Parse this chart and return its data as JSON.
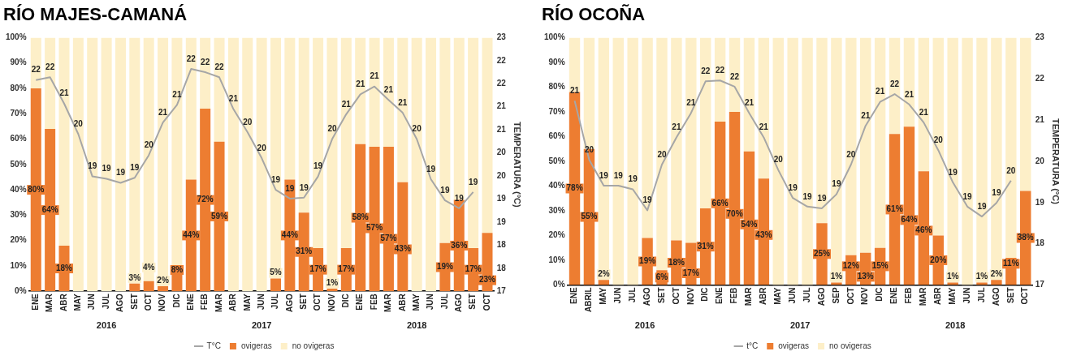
{
  "chart_data": [
    {
      "type": "bar",
      "title": "RÍO MAJES-CAMANÁ",
      "y2label": "TEMPERATURA (°C)",
      "stacked": true,
      "grid": false,
      "legend": "bottom",
      "marker": "none",
      "line_style": "solid",
      "categories": [
        "ENE",
        "MAR",
        "ABR",
        "MAY",
        "JUN",
        "JUL",
        "AGO",
        "SET",
        "OCT",
        "NOV",
        "DIC",
        "ENE",
        "FEB",
        "MAR",
        "ABR",
        "MAY",
        "JUN",
        "JUL",
        "AGO",
        "SET",
        "OCT",
        "NOV",
        "DIC",
        "ENE",
        "FEB",
        "MAR",
        "ABR",
        "MAY",
        "JUN",
        "JUL",
        "AGO",
        "SET",
        "OCT"
      ],
      "ylim": [
        0,
        100
      ],
      "yticks": [
        {
          "value": 0,
          "label": "0%"
        },
        {
          "value": 10,
          "label": "10%"
        },
        {
          "value": 20,
          "label": "20%"
        },
        {
          "value": 30,
          "label": "30%"
        },
        {
          "value": 40,
          "label": "40%"
        },
        {
          "value": 50,
          "label": "50%"
        },
        {
          "value": 60,
          "label": "60%"
        },
        {
          "value": 70,
          "label": "70%"
        },
        {
          "value": 80,
          "label": "80%"
        },
        {
          "value": 90,
          "label": "90%"
        },
        {
          "value": 100,
          "label": "100%"
        }
      ],
      "y2lim": [
        17,
        22.5
      ],
      "y2ticks": [
        17,
        {
          "value": 17.5,
          "label": "18"
        },
        18,
        {
          "value": 18.5,
          "label": "19"
        },
        19,
        {
          "value": 19.5,
          "label": "20"
        },
        20,
        {
          "value": 20.5,
          "label": "21"
        },
        21,
        {
          "value": 21.5,
          "label": "22"
        },
        22,
        {
          "value": 22.5,
          "label": "23"
        }
      ],
      "series": [
        {
          "name": "ovigeras",
          "color": "#ed7d31",
          "values": [
            80,
            64,
            18,
            0,
            0,
            0,
            0,
            3,
            4,
            2,
            8,
            44,
            72,
            59,
            0,
            0,
            0,
            5,
            44,
            31,
            17,
            1,
            17,
            58,
            57,
            57,
            43,
            0,
            0,
            19,
            36,
            17,
            23
          ],
          "value_labels": [
            "80%",
            "64%",
            "18%",
            null,
            null,
            null,
            null,
            "3%",
            "4%",
            "2%",
            "8%",
            "44%",
            "72%",
            "59%",
            null,
            null,
            null,
            "5%",
            "44%",
            "31%",
            "17%",
            "1%",
            "17%",
            "58%",
            "57%",
            "57%",
            "43%",
            null,
            null,
            "19%",
            "36%",
            "17%",
            "23%"
          ]
        },
        {
          "name": "no ovigeras",
          "color": "#fdefc8",
          "values": [
            20,
            36,
            82,
            100,
            100,
            100,
            100,
            97,
            96,
            98,
            92,
            56,
            28,
            41,
            100,
            100,
            100,
            95,
            56,
            69,
            83,
            99,
            83,
            42,
            43,
            43,
            57,
            100,
            100,
            81,
            64,
            83,
            77
          ]
        },
        {
          "name": "T°C",
          "type": "line",
          "axis": "y2",
          "color": "#a6a6a6",
          "values": [
            21.58,
            21.64,
            21.07,
            20.41,
            19.49,
            19.44,
            19.35,
            19.46,
            19.95,
            20.66,
            21.04,
            21.82,
            21.75,
            21.64,
            20.95,
            20.45,
            19.89,
            19.2,
            19.01,
            19.03,
            19.49,
            20.3,
            20.84,
            21.27,
            21.44,
            21.15,
            20.87,
            20.3,
            19.43,
            18.97,
            18.8,
            19.15,
            null
          ],
          "value_labels": [
            "22",
            "22",
            "21",
            "20",
            "19",
            "19",
            "19",
            "19",
            "20",
            "21",
            "21",
            "22",
            "22",
            "22",
            "21",
            "20",
            "20",
            "19",
            "19",
            "19",
            "19",
            "20",
            "21",
            "21",
            "21",
            "21",
            "21",
            "20",
            "19",
            "19",
            "19",
            "19",
            null
          ]
        }
      ],
      "annotations": [
        "2016",
        "2017",
        "2018"
      ]
    },
    {
      "type": "bar",
      "title": "RÍO OCOÑA",
      "y2label": "TEMPERATURA (°C)",
      "stacked": true,
      "grid": false,
      "legend": "bottom",
      "marker": "none",
      "line_style": "solid",
      "categories": [
        "ENE",
        "ABRIL",
        "MAY",
        "JUN",
        "JUL",
        "AGO",
        "SET",
        "OCT",
        "NOV",
        "DIC",
        "ENE",
        "FEB",
        "MAR",
        "ABR",
        "MAY",
        "JUN",
        "JUL",
        "AGO",
        "SEP",
        "OCT",
        "NOV",
        "DIC",
        "ENE",
        "FEB",
        "MAR",
        "ABR",
        "MAY",
        "JUN",
        "JUL",
        "AGO",
        "SET",
        "OCT"
      ],
      "ylim": [
        0,
        100
      ],
      "yticks": [
        {
          "value": 0,
          "label": "0%"
        },
        {
          "value": 10,
          "label": "10%"
        },
        {
          "value": 20,
          "label": "20%"
        },
        {
          "value": 30,
          "label": "30%"
        },
        {
          "value": 40,
          "label": "40%"
        },
        {
          "value": 50,
          "label": "50%"
        },
        {
          "value": 60,
          "label": "60%"
        },
        {
          "value": 70,
          "label": "70%"
        },
        {
          "value": 80,
          "label": "80%"
        },
        {
          "value": 90,
          "label": "90%"
        },
        {
          "value": 100,
          "label": "100%"
        }
      ],
      "y2lim": [
        17,
        23
      ],
      "y2ticks": [
        17,
        18,
        19,
        20,
        21,
        22,
        23
      ],
      "series": [
        {
          "name": "ovigeras",
          "color": "#ed7d31",
          "values": [
            78,
            55,
            2,
            0,
            0,
            19,
            6,
            18,
            17,
            31,
            66,
            70,
            54,
            43,
            0,
            0,
            0,
            25,
            1,
            12,
            13,
            15,
            61,
            64,
            46,
            20,
            1,
            0,
            1,
            2,
            11,
            38
          ],
          "value_labels": [
            "78%",
            "55%",
            "2%",
            null,
            null,
            "19%",
            "6%",
            "18%",
            "17%",
            "31%",
            "66%",
            "70%",
            "54%",
            "43%",
            null,
            null,
            null,
            "25%",
            "1%",
            "12%",
            "13%",
            "15%",
            "61%",
            "64%",
            "46%",
            "20%",
            "1%",
            null,
            "1%",
            "2%",
            "11%",
            "38%"
          ]
        },
        {
          "name": "no ovigeras",
          "color": "#fdefc8",
          "values": [
            22,
            45,
            98,
            100,
            100,
            81,
            94,
            82,
            83,
            69,
            34,
            30,
            46,
            57,
            100,
            100,
            100,
            75,
            99,
            88,
            87,
            85,
            39,
            36,
            54,
            80,
            99,
            100,
            99,
            98,
            89,
            62
          ]
        },
        {
          "name": "t°C",
          "type": "line",
          "axis": "y2",
          "color": "#a6a6a6",
          "values": [
            21.47,
            20.04,
            19.41,
            19.41,
            19.32,
            18.81,
            19.92,
            20.58,
            21.17,
            21.94,
            21.96,
            21.81,
            21.17,
            20.58,
            19.79,
            19.11,
            18.9,
            18.86,
            19.2,
            19.92,
            20.86,
            21.44,
            21.63,
            21.38,
            20.94,
            20.27,
            19.49,
            18.9,
            18.66,
            18.99,
            19.53,
            null
          ],
          "value_labels": [
            "21",
            "20",
            "19",
            "19",
            "19",
            "19",
            "20",
            "21",
            "21",
            "22",
            "22",
            "22",
            "21",
            "21",
            "20",
            "19",
            "19",
            "19",
            "19",
            "20",
            "21",
            "21",
            "22",
            "21",
            "21",
            "20",
            "19",
            "19",
            "19",
            "19",
            "20",
            null
          ]
        }
      ],
      "annotations": [
        "2016",
        "2017",
        "2018"
      ]
    }
  ]
}
